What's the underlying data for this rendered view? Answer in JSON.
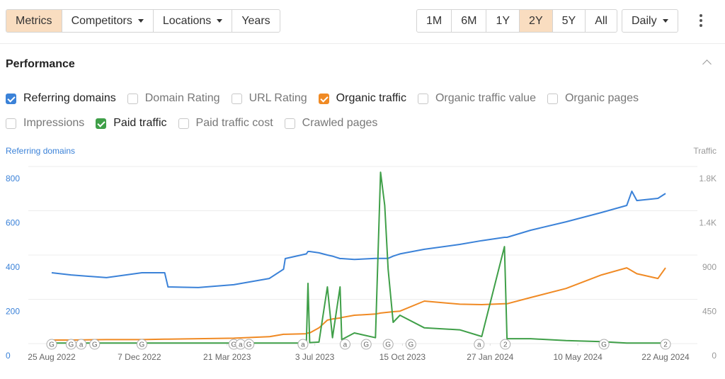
{
  "toolbar": {
    "tabs": [
      {
        "label": "Metrics",
        "active": true
      },
      {
        "label": "Competitors",
        "dropdown": true
      },
      {
        "label": "Locations",
        "dropdown": true
      },
      {
        "label": "Years"
      }
    ],
    "ranges": [
      {
        "label": "1M"
      },
      {
        "label": "6M"
      },
      {
        "label": "1Y"
      },
      {
        "label": "2Y",
        "active": true
      },
      {
        "label": "5Y"
      },
      {
        "label": "All"
      }
    ],
    "interval": "Daily"
  },
  "section": {
    "title": "Performance"
  },
  "options": [
    {
      "label": "Referring domains",
      "checked": true,
      "color": "#3b82d8"
    },
    {
      "label": "Domain Rating",
      "checked": false
    },
    {
      "label": "URL Rating",
      "checked": false
    },
    {
      "label": "Organic traffic",
      "checked": true,
      "color": "#f08a24"
    },
    {
      "label": "Organic traffic value",
      "checked": false
    },
    {
      "label": "Organic pages",
      "checked": false
    },
    {
      "label": "Impressions",
      "checked": false
    },
    {
      "label": "Paid traffic",
      "checked": true,
      "color": "#3f9f48"
    },
    {
      "label": "Paid traffic cost",
      "checked": false
    },
    {
      "label": "Crawled pages",
      "checked": false
    }
  ],
  "chart_data": {
    "type": "line",
    "y_label": "Referring domains",
    "y2_label": "Traffic",
    "x": [
      "25 Aug 2022",
      "17 Sep 2022",
      "29 Oct 2022",
      "10 Dec 2022",
      "6 Jan 2023",
      "10 Jan 2023",
      "15 Feb 2023",
      "29 Mar 2023",
      "10 May 2023",
      "27 May 2023",
      "29 May 2023",
      "23 Jun 2023",
      "25 Jun 2023",
      "27 Jun 2023",
      "8 Jul 2023",
      "18 Jul 2023",
      "24 Jul 2023",
      "2 Aug 2023",
      "4 Aug 2023",
      "19 Aug 2023",
      "13 Sep 2023",
      "19 Sep 2023",
      "24 Sep 2023",
      "28 Sep 2023",
      "4 Oct 2023",
      "12 Oct 2023",
      "10 Nov 2023",
      "22 Dec 2023",
      "17 Jan 2024",
      "13 Feb 2024",
      "16 Feb 2024",
      "15 Mar 2024",
      "26 Apr 2024",
      "7 Jun 2024",
      "7 Jul 2024",
      "13 Jul 2024",
      "19 Jul 2024",
      "13 Aug 2024",
      "22 Aug 2024"
    ],
    "series": [
      {
        "name": "Referring domains",
        "color": "#3b82d8",
        "values": [
          320,
          310,
          298,
          320,
          320,
          256,
          253,
          266,
          294,
          336,
          384,
          405,
          416,
          416,
          410,
          400,
          395,
          384,
          384,
          380,
          385,
          385,
          385,
          385,
          395,
          405,
          426,
          448,
          465,
          480,
          480,
          512,
          550,
          592,
          624,
          688,
          646,
          656,
          678
        ]
      },
      {
        "name": "Organic traffic",
        "color": "#f08a24",
        "axis": "y2",
        "values": [
          36,
          36,
          40,
          40,
          45,
          45,
          50,
          55,
          70,
          94,
          94,
          100,
          108,
          108,
          160,
          238,
          250,
          260,
          265,
          288,
          300,
          310,
          315,
          318,
          324,
          330,
          432,
          400,
          396,
          405,
          405,
          468,
          560,
          698,
          770,
          740,
          710,
          662,
          770
        ]
      },
      {
        "name": "Paid traffic",
        "color": "#3f9f48",
        "axis": "y2",
        "values": [
          5,
          5,
          5,
          5,
          5,
          5,
          5,
          5,
          5,
          5,
          5,
          5,
          612,
          10,
          15,
          576,
          60,
          576,
          40,
          108,
          60,
          1742,
          1404,
          756,
          216,
          288,
          160,
          140,
          72,
          986,
          50,
          50,
          30,
          20,
          5,
          5,
          5,
          5,
          5
        ]
      }
    ],
    "xlim": [
      "25 Aug 2022",
      "22 Aug 2024"
    ],
    "xticks": [
      "25 Aug 2022",
      "7 Dec 2022",
      "21 Mar 2023",
      "3 Jul 2023",
      "15 Oct 2023",
      "27 Jan 2024",
      "10 May 2024",
      "22 Aug 2024"
    ],
    "ylim": [
      0,
      800
    ],
    "yticks": [
      0,
      200,
      400,
      600,
      800
    ],
    "y2lim": [
      0,
      1800
    ],
    "y2ticks": [
      0,
      450,
      900,
      {
        "value": 1350,
        "label": "1.4K"
      },
      {
        "value": 1800,
        "label": "1.8K"
      }
    ],
    "grid": true,
    "annotations": [
      {
        "x": "25 Aug 2022",
        "label": "G"
      },
      {
        "x": "17 Sep 2022",
        "label": "G"
      },
      {
        "x": "29 Sep 2022",
        "label": "a"
      },
      {
        "x": "15 Oct 2022",
        "label": "G"
      },
      {
        "x": "10 Dec 2022",
        "label": "G"
      },
      {
        "x": "29 Mar 2023",
        "label": "G"
      },
      {
        "x": "6 Apr 2023",
        "label": "a"
      },
      {
        "x": "16 Apr 2023",
        "label": "G"
      },
      {
        "x": "19 Jun 2023",
        "label": "a"
      },
      {
        "x": "8 Aug 2023",
        "label": "a"
      },
      {
        "x": "2 Sep 2023",
        "label": "G"
      },
      {
        "x": "28 Sep 2023",
        "label": "G"
      },
      {
        "x": "25 Oct 2023",
        "label": "G"
      },
      {
        "x": "14 Jan 2024",
        "label": "a"
      },
      {
        "x": "14 Feb 2024",
        "label": "2"
      },
      {
        "x": "10 Jun 2024",
        "label": "G"
      },
      {
        "x": "22 Aug 2024",
        "label": "2"
      }
    ]
  }
}
